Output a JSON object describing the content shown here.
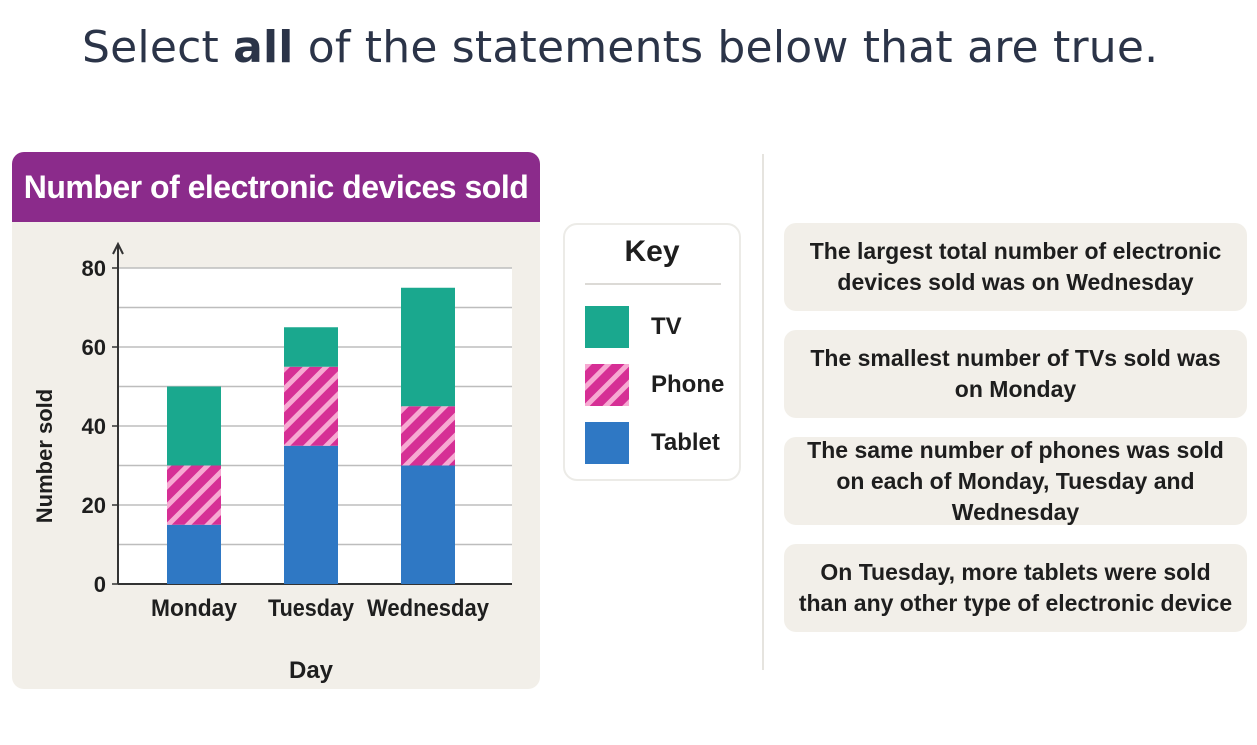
{
  "question": {
    "prefix": "Select ",
    "emphasis": "all",
    "suffix": " of the statements below that are true."
  },
  "chart_data": {
    "type": "bar",
    "stacked": true,
    "title": "Number of electronic devices sold",
    "xlabel": "Day",
    "ylabel": "Number sold",
    "categories": [
      "Monday",
      "Tuesday",
      "Wednesday"
    ],
    "series": [
      {
        "name": "Tablet",
        "values": [
          15,
          35,
          30
        ],
        "color": "#2f78c4",
        "pattern": "solid"
      },
      {
        "name": "Phone",
        "values": [
          15,
          20,
          15
        ],
        "color": "#d62f95",
        "pattern": "hatched"
      },
      {
        "name": "TV",
        "values": [
          20,
          10,
          30
        ],
        "color": "#1aa88e",
        "pattern": "solid"
      }
    ],
    "ylim": [
      0,
      80
    ],
    "yticks": [
      0,
      20,
      40,
      60,
      80
    ],
    "grid": true,
    "legend": "right"
  },
  "key": {
    "title": "Key",
    "items": [
      {
        "label": "TV",
        "color": "#1aa88e",
        "pattern": "solid"
      },
      {
        "label": "Phone",
        "color": "#d62f95",
        "pattern": "hatched"
      },
      {
        "label": "Tablet",
        "color": "#2f78c4",
        "pattern": "solid"
      }
    ]
  },
  "statements": [
    {
      "text": "The largest total number of electronic devices sold was on Wednesday"
    },
    {
      "text": "The smallest number of TVs sold was on Monday"
    },
    {
      "text": "The same number of phones was sold on each of Monday, Tuesday and Wednesday"
    },
    {
      "text": "On Tuesday, more tablets were sold than any other type of electronic device"
    }
  ]
}
